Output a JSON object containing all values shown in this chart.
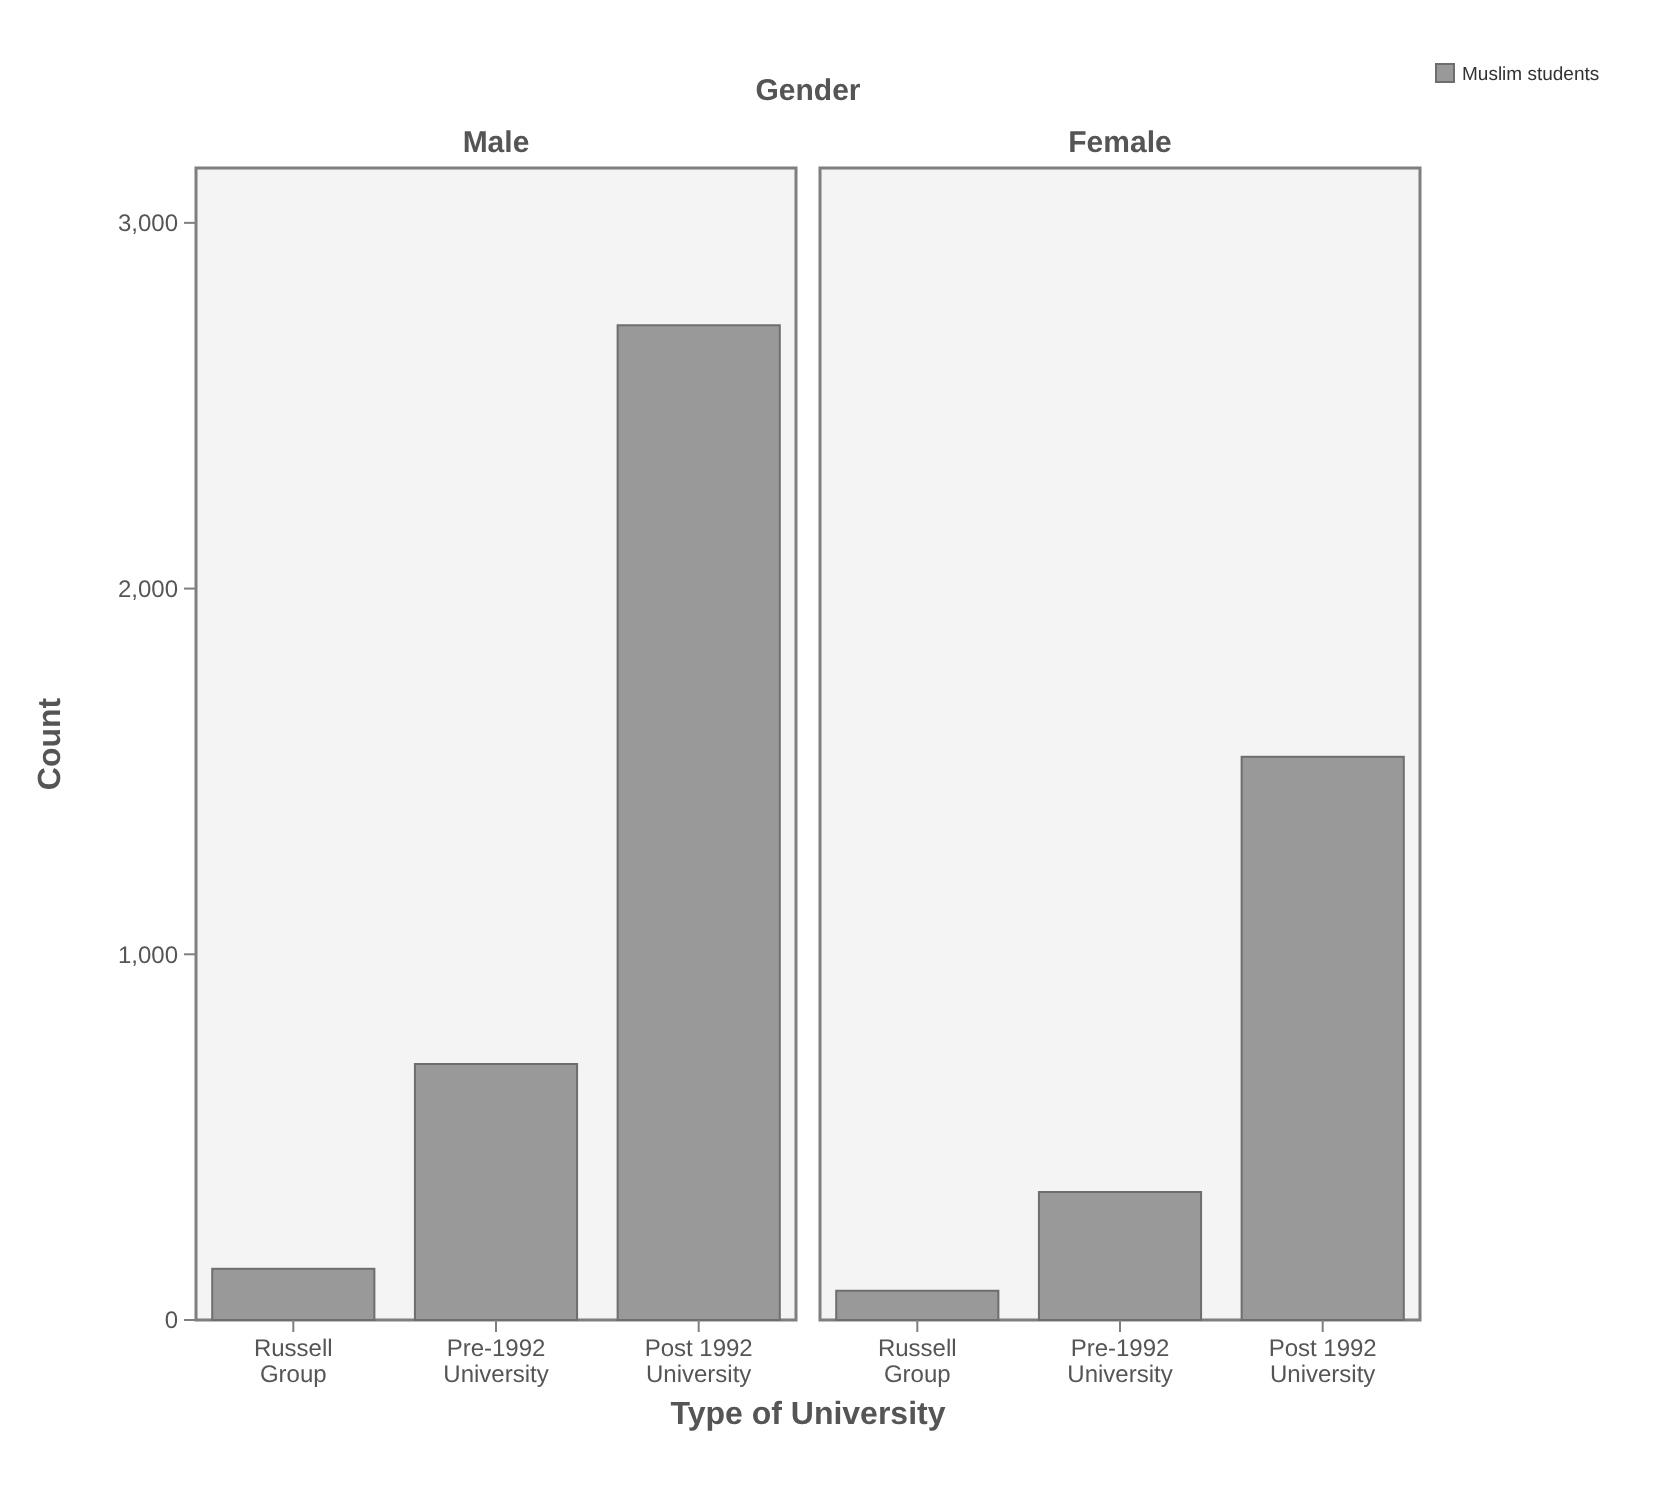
{
  "chart_data": [
    {
      "type": "bar",
      "title": "Male",
      "annotations": [
        "Gender"
      ],
      "xlabel": "Type of University",
      "ylabel": "Count",
      "categories": [
        "Russell Group",
        "Pre-1992 University",
        "Post 1992 University"
      ],
      "series": [
        {
          "name": "Muslim students",
          "color": "#999999",
          "values": [
            140,
            700,
            2720
          ]
        }
      ],
      "ylim": [
        0,
        3150
      ],
      "yticks": [
        {
          "value": 0,
          "label": "0"
        },
        {
          "value": 1000,
          "label": "1,000"
        },
        {
          "value": 2000,
          "label": "2,000"
        },
        {
          "value": 3000,
          "label": "3,000"
        }
      ],
      "legend": "top right",
      "grid": false
    },
    {
      "type": "bar",
      "title": "Female",
      "categories": [
        "Russell Group",
        "Pre-1992 University",
        "Post 1992 University"
      ],
      "series": [
        {
          "color": "#999999",
          "values": [
            80,
            350,
            1540
          ]
        }
      ],
      "ylim": [
        0,
        3150
      ],
      "tick_labels": "x",
      "grid": false
    }
  ]
}
